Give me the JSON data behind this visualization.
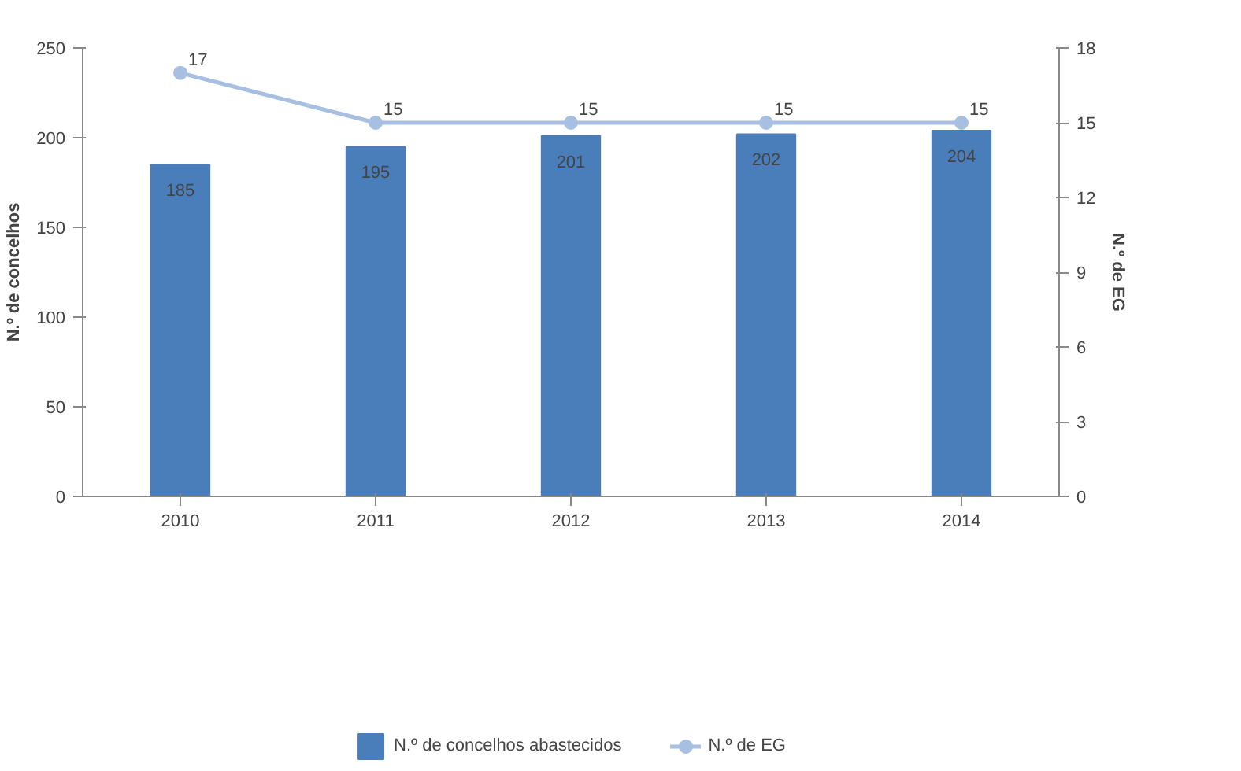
{
  "chart_data": {
    "type": "bar",
    "categories": [
      "2010",
      "2011",
      "2012",
      "2013",
      "2014"
    ],
    "ylabel": "N.º de concelhos",
    "y2label": "N.º de EG",
    "ylim": [
      0,
      250
    ],
    "yticks": [
      0,
      50,
      100,
      150,
      200,
      250
    ],
    "y2lim": [
      0,
      18
    ],
    "y2ticks": [
      0,
      3,
      6,
      9,
      12,
      15,
      18
    ],
    "series": [
      {
        "name": "N.º de concelhos abastecidos",
        "color": "#4a7ebb",
        "values": [
          185,
          195,
          201,
          202,
          204
        ]
      },
      {
        "name": "N.º de EG",
        "type": "line",
        "axis": "y2",
        "color": "#a7bfe0",
        "marker": "circle",
        "values": [
          17,
          15,
          15,
          15,
          15
        ]
      }
    ],
    "data_labels": true,
    "grid": false,
    "legend": "bottom"
  }
}
